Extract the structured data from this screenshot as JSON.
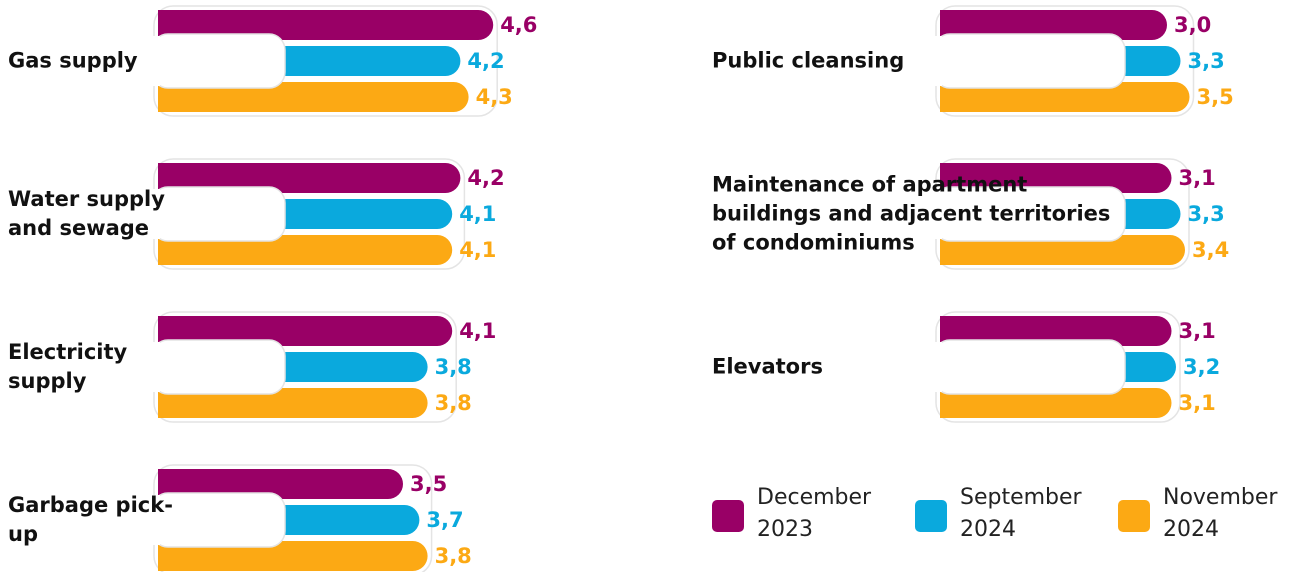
{
  "chart_data": {
    "type": "bar",
    "categories": [
      "Gas supply",
      "Water supply and sewage",
      "Electricity supply",
      "Garbage pick-up",
      "Public cleansing",
      "Maintenance of apartment buildings and adjacent territories of condominiums",
      "Elevators"
    ],
    "series": [
      {
        "name": "December 2023",
        "color": "#990066",
        "values": [
          4.6,
          4.2,
          4.1,
          3.5,
          3.0,
          3.1,
          3.1
        ],
        "value_labels": [
          "4,6",
          "4,2",
          "4,1",
          "3,5",
          "3,0",
          "3,1",
          "3,1"
        ]
      },
      {
        "name": "September 2024",
        "color": "#0aa9dd",
        "values": [
          4.2,
          4.1,
          3.8,
          3.7,
          3.3,
          3.3,
          3.2
        ],
        "value_labels": [
          "4,2",
          "4,1",
          "3,8",
          "3,7",
          "3,3",
          "3,3",
          "3,2"
        ]
      },
      {
        "name": "November 2024",
        "color": "#fca914",
        "values": [
          4.3,
          4.1,
          3.8,
          3.8,
          3.5,
          3.4,
          3.1
        ],
        "value_labels": [
          "4,3",
          "4,1",
          "3,8",
          "3,8",
          "3,5",
          "3,4",
          "3,1"
        ]
      }
    ]
  }
}
